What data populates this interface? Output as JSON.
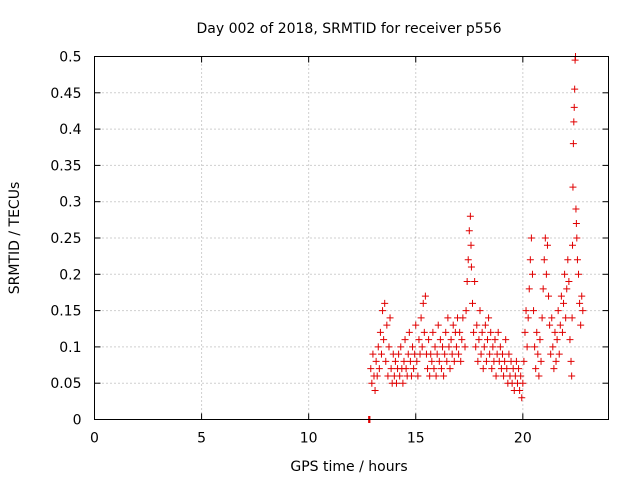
{
  "chart_data": {
    "type": "scatter",
    "title": "Day 002 of 2018, SRMTID for receiver p556",
    "xlabel": "GPS time / hours",
    "ylabel": "SRMTID / TECUs",
    "xlim": [
      0,
      24
    ],
    "ylim": [
      0,
      0.5
    ],
    "xticks": [
      0,
      5,
      10,
      15,
      20
    ],
    "xtick_labels": [
      "0",
      "5",
      "10",
      "15",
      "20"
    ],
    "yticks": [
      0,
      0.05,
      0.1,
      0.15,
      0.2,
      0.25,
      0.3,
      0.35,
      0.4,
      0.45,
      0.5
    ],
    "ytick_labels": [
      "0",
      "0.05",
      "0.1",
      "0.15",
      "0.2",
      "0.25",
      "0.3",
      "0.35",
      "0.4",
      "0.45",
      "0.5"
    ],
    "grid": true,
    "marker": "+",
    "color": "#e00000",
    "series": [
      {
        "name": "SRMTID",
        "points": [
          [
            12.8,
            0.0
          ],
          [
            12.83,
            0.0
          ],
          [
            12.86,
            0.0
          ],
          [
            12.9,
            0.07
          ],
          [
            12.95,
            0.05
          ],
          [
            13.0,
            0.09
          ],
          [
            13.05,
            0.06
          ],
          [
            13.1,
            0.04
          ],
          [
            13.15,
            0.08
          ],
          [
            13.2,
            0.06
          ],
          [
            13.25,
            0.1
          ],
          [
            13.3,
            0.07
          ],
          [
            13.35,
            0.12
          ],
          [
            13.4,
            0.09
          ],
          [
            13.45,
            0.15
          ],
          [
            13.5,
            0.11
          ],
          [
            13.55,
            0.16
          ],
          [
            13.6,
            0.08
          ],
          [
            13.65,
            0.13
          ],
          [
            13.7,
            0.06
          ],
          [
            13.75,
            0.1
          ],
          [
            13.8,
            0.14
          ],
          [
            13.85,
            0.07
          ],
          [
            13.9,
            0.05
          ],
          [
            13.95,
            0.09
          ],
          [
            14.0,
            0.06
          ],
          [
            14.05,
            0.08
          ],
          [
            14.1,
            0.05
          ],
          [
            14.15,
            0.07
          ],
          [
            14.2,
            0.09
          ],
          [
            14.25,
            0.06
          ],
          [
            14.3,
            0.1
          ],
          [
            14.35,
            0.07
          ],
          [
            14.4,
            0.05
          ],
          [
            14.45,
            0.08
          ],
          [
            14.5,
            0.11
          ],
          [
            14.55,
            0.07
          ],
          [
            14.6,
            0.06
          ],
          [
            14.65,
            0.09
          ],
          [
            14.7,
            0.12
          ],
          [
            14.75,
            0.08
          ],
          [
            14.8,
            0.06
          ],
          [
            14.85,
            0.1
          ],
          [
            14.9,
            0.07
          ],
          [
            14.95,
            0.09
          ],
          [
            15.0,
            0.13
          ],
          [
            15.05,
            0.08
          ],
          [
            15.1,
            0.06
          ],
          [
            15.15,
            0.11
          ],
          [
            15.2,
            0.09
          ],
          [
            15.25,
            0.14
          ],
          [
            15.3,
            0.1
          ],
          [
            15.35,
            0.16
          ],
          [
            15.4,
            0.12
          ],
          [
            15.45,
            0.17
          ],
          [
            15.5,
            0.09
          ],
          [
            15.55,
            0.07
          ],
          [
            15.6,
            0.11
          ],
          [
            15.65,
            0.06
          ],
          [
            15.7,
            0.09
          ],
          [
            15.75,
            0.08
          ],
          [
            15.8,
            0.12
          ],
          [
            15.85,
            0.07
          ],
          [
            15.9,
            0.1
          ],
          [
            15.95,
            0.06
          ],
          [
            16.0,
            0.09
          ],
          [
            16.05,
            0.13
          ],
          [
            16.1,
            0.08
          ],
          [
            16.15,
            0.11
          ],
          [
            16.2,
            0.07
          ],
          [
            16.25,
            0.1
          ],
          [
            16.3,
            0.06
          ],
          [
            16.35,
            0.09
          ],
          [
            16.4,
            0.12
          ],
          [
            16.45,
            0.08
          ],
          [
            16.5,
            0.14
          ],
          [
            16.55,
            0.1
          ],
          [
            16.6,
            0.07
          ],
          [
            16.65,
            0.11
          ],
          [
            16.7,
            0.09
          ],
          [
            16.75,
            0.13
          ],
          [
            16.8,
            0.08
          ],
          [
            16.85,
            0.12
          ],
          [
            16.9,
            0.1
          ],
          [
            16.95,
            0.14
          ],
          [
            17.0,
            0.09
          ],
          [
            17.05,
            0.12
          ],
          [
            17.1,
            0.08
          ],
          [
            17.15,
            0.11
          ],
          [
            17.2,
            0.14
          ],
          [
            17.3,
            0.1
          ],
          [
            17.35,
            0.15
          ],
          [
            17.4,
            0.19
          ],
          [
            17.45,
            0.22
          ],
          [
            17.5,
            0.26
          ],
          [
            17.55,
            0.28
          ],
          [
            17.58,
            0.24
          ],
          [
            17.6,
            0.21
          ],
          [
            17.65,
            0.16
          ],
          [
            17.7,
            0.12
          ],
          [
            17.75,
            0.19
          ],
          [
            17.8,
            0.1
          ],
          [
            17.85,
            0.13
          ],
          [
            17.9,
            0.08
          ],
          [
            17.95,
            0.11
          ],
          [
            18.0,
            0.15
          ],
          [
            18.05,
            0.09
          ],
          [
            18.1,
            0.12
          ],
          [
            18.15,
            0.07
          ],
          [
            18.2,
            0.1
          ],
          [
            18.25,
            0.13
          ],
          [
            18.3,
            0.08
          ],
          [
            18.35,
            0.11
          ],
          [
            18.4,
            0.14
          ],
          [
            18.45,
            0.09
          ],
          [
            18.5,
            0.12
          ],
          [
            18.55,
            0.07
          ],
          [
            18.6,
            0.1
          ],
          [
            18.65,
            0.08
          ],
          [
            18.7,
            0.11
          ],
          [
            18.75,
            0.06
          ],
          [
            18.8,
            0.09
          ],
          [
            18.85,
            0.12
          ],
          [
            18.9,
            0.08
          ],
          [
            18.95,
            0.1
          ],
          [
            19.0,
            0.07
          ],
          [
            19.05,
            0.09
          ],
          [
            19.1,
            0.06
          ],
          [
            19.15,
            0.08
          ],
          [
            19.2,
            0.11
          ],
          [
            19.25,
            0.07
          ],
          [
            19.3,
            0.05
          ],
          [
            19.35,
            0.09
          ],
          [
            19.4,
            0.06
          ],
          [
            19.45,
            0.08
          ],
          [
            19.5,
            0.05
          ],
          [
            19.55,
            0.07
          ],
          [
            19.6,
            0.04
          ],
          [
            19.65,
            0.06
          ],
          [
            19.7,
            0.08
          ],
          [
            19.75,
            0.05
          ],
          [
            19.8,
            0.07
          ],
          [
            19.85,
            0.04
          ],
          [
            19.9,
            0.06
          ],
          [
            19.95,
            0.03
          ],
          [
            20.0,
            0.05
          ],
          [
            20.05,
            0.08
          ],
          [
            20.1,
            0.12
          ],
          [
            20.15,
            0.15
          ],
          [
            20.2,
            0.1
          ],
          [
            20.25,
            0.14
          ],
          [
            20.3,
            0.18
          ],
          [
            20.35,
            0.22
          ],
          [
            20.4,
            0.25
          ],
          [
            20.45,
            0.2
          ],
          [
            20.5,
            0.15
          ],
          [
            20.55,
            0.1
          ],
          [
            20.6,
            0.07
          ],
          [
            20.65,
            0.12
          ],
          [
            20.7,
            0.09
          ],
          [
            20.75,
            0.06
          ],
          [
            20.8,
            0.11
          ],
          [
            20.85,
            0.08
          ],
          [
            20.9,
            0.14
          ],
          [
            20.95,
            0.18
          ],
          [
            21.0,
            0.22
          ],
          [
            21.05,
            0.25
          ],
          [
            21.1,
            0.2
          ],
          [
            21.15,
            0.24
          ],
          [
            21.2,
            0.17
          ],
          [
            21.25,
            0.13
          ],
          [
            21.3,
            0.09
          ],
          [
            21.35,
            0.14
          ],
          [
            21.4,
            0.1
          ],
          [
            21.45,
            0.07
          ],
          [
            21.5,
            0.12
          ],
          [
            21.55,
            0.08
          ],
          [
            21.6,
            0.11
          ],
          [
            21.65,
            0.15
          ],
          [
            21.7,
            0.09
          ],
          [
            21.75,
            0.13
          ],
          [
            21.8,
            0.17
          ],
          [
            21.85,
            0.12
          ],
          [
            21.9,
            0.16
          ],
          [
            21.95,
            0.2
          ],
          [
            22.0,
            0.14
          ],
          [
            22.05,
            0.18
          ],
          [
            22.1,
            0.22
          ],
          [
            22.15,
            0.19
          ],
          [
            22.2,
            0.11
          ],
          [
            22.25,
            0.08
          ],
          [
            22.28,
            0.06
          ],
          [
            22.3,
            0.14
          ],
          [
            22.32,
            0.24
          ],
          [
            22.34,
            0.32
          ],
          [
            22.36,
            0.38
          ],
          [
            22.38,
            0.41
          ],
          [
            22.4,
            0.43
          ],
          [
            22.42,
            0.455
          ],
          [
            22.44,
            0.495
          ],
          [
            22.46,
            0.5
          ],
          [
            22.48,
            0.29
          ],
          [
            22.5,
            0.27
          ],
          [
            22.52,
            0.25
          ],
          [
            22.55,
            0.22
          ],
          [
            22.6,
            0.2
          ],
          [
            22.65,
            0.16
          ],
          [
            22.7,
            0.13
          ],
          [
            22.75,
            0.17
          ],
          [
            22.8,
            0.15
          ]
        ]
      }
    ]
  }
}
